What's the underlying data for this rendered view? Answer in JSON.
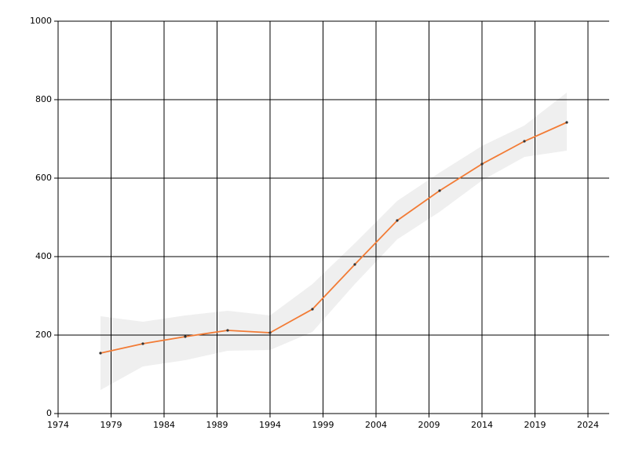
{
  "chart_data": {
    "type": "line",
    "x": [
      1978,
      1982,
      1986,
      1990,
      1994,
      1998,
      2002,
      2006,
      2010,
      2014,
      2018,
      2022
    ],
    "values": [
      154,
      178,
      196,
      212,
      206,
      266,
      380,
      492,
      568,
      636,
      694,
      742
    ],
    "lower": [
      60,
      120,
      136,
      160,
      162,
      208,
      330,
      444,
      514,
      594,
      654,
      670
    ],
    "upper": [
      248,
      234,
      250,
      262,
      250,
      330,
      434,
      542,
      614,
      682,
      734,
      818
    ],
    "color": "#f27b35",
    "band_color": "#efefef",
    "marker_color": "#333333",
    "xlim": [
      1974,
      2026
    ],
    "xticks": [
      1974,
      1979,
      1984,
      1989,
      1994,
      1999,
      2004,
      2009,
      2014,
      2019,
      2024
    ],
    "ylim": [
      0,
      1000
    ],
    "yticks": [
      0,
      200,
      400,
      600,
      800,
      1000
    ],
    "grid": true
  }
}
